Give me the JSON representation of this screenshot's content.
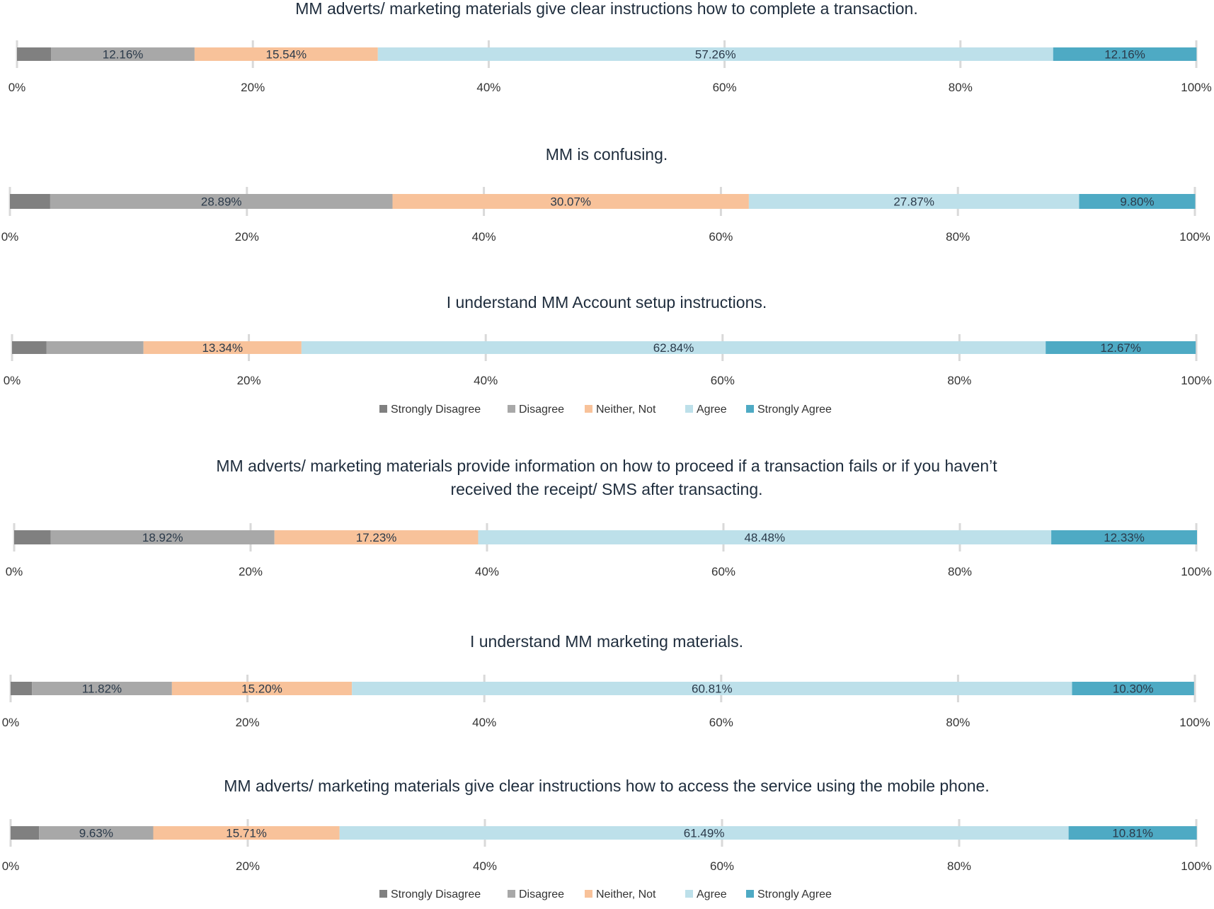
{
  "series_names": [
    "Strongly Disagree",
    "Disagree",
    "Neither, Not",
    "Agree",
    "Strongly Agree"
  ],
  "series_colors": [
    "#808080",
    "#a8a8a8",
    "#f8c29a",
    "#bde0ea",
    "#4eaac4"
  ],
  "x_tick_labels": [
    "0%",
    "20%",
    "40%",
    "60%",
    "80%",
    "100%"
  ],
  "chart_data": [
    {
      "type": "bar",
      "stacked": true,
      "orientation": "horizontal",
      "title": "MM adverts/ marketing materials give clear instructions how to complete a transaction.",
      "xlim": [
        0,
        100
      ],
      "series": [
        {
          "name": "Strongly Disagree",
          "value": 2.9,
          "label": ""
        },
        {
          "name": "Disagree",
          "value": 12.16,
          "label": "12.16%"
        },
        {
          "name": "Neither, Not",
          "value": 15.54,
          "label": "15.54%"
        },
        {
          "name": "Agree",
          "value": 57.26,
          "label": "57.26%"
        },
        {
          "name": "Strongly Agree",
          "value": 12.16,
          "label": "12.16%"
        }
      ]
    },
    {
      "type": "bar",
      "stacked": true,
      "orientation": "horizontal",
      "title": "MM is confusing.",
      "xlim": [
        0,
        100
      ],
      "series": [
        {
          "name": "Strongly Disagree",
          "value": 3.4,
          "label": ""
        },
        {
          "name": "Disagree",
          "value": 28.89,
          "label": "28.89%"
        },
        {
          "name": "Neither, Not",
          "value": 30.07,
          "label": "30.07%"
        },
        {
          "name": "Agree",
          "value": 27.87,
          "label": "27.87%"
        },
        {
          "name": "Strongly Agree",
          "value": 9.8,
          "label": "9.80%"
        }
      ]
    },
    {
      "type": "bar",
      "stacked": true,
      "orientation": "horizontal",
      "title": "I understand MM Account setup instructions.",
      "xlim": [
        0,
        100
      ],
      "series": [
        {
          "name": "Strongly Disagree",
          "value": 2.9,
          "label": ""
        },
        {
          "name": "Disagree",
          "value": 8.2,
          "label": ""
        },
        {
          "name": "Neither, Not",
          "value": 13.34,
          "label": "13.34%"
        },
        {
          "name": "Agree",
          "value": 62.84,
          "label": "62.84%"
        },
        {
          "name": "Strongly Agree",
          "value": 12.67,
          "label": "12.67%"
        }
      ]
    },
    {
      "type": "bar",
      "stacked": true,
      "orientation": "horizontal",
      "title": "MM adverts/ marketing materials provide information on how to proceed if a transaction fails or if you haven’t received the receipt/ SMS after transacting.",
      "title_lines": [
        "MM adverts/ marketing materials provide information on how to proceed if a transaction fails or if you haven’t",
        "received the receipt/ SMS after transacting."
      ],
      "xlim": [
        0,
        100
      ],
      "series": [
        {
          "name": "Strongly Disagree",
          "value": 3.1,
          "label": ""
        },
        {
          "name": "Disagree",
          "value": 18.92,
          "label": "18.92%"
        },
        {
          "name": "Neither, Not",
          "value": 17.23,
          "label": "17.23%"
        },
        {
          "name": "Agree",
          "value": 48.48,
          "label": "48.48%"
        },
        {
          "name": "Strongly Agree",
          "value": 12.33,
          "label": "12.33%"
        }
      ]
    },
    {
      "type": "bar",
      "stacked": true,
      "orientation": "horizontal",
      "title": "I understand MM marketing materials.",
      "xlim": [
        0,
        100
      ],
      "series": [
        {
          "name": "Strongly Disagree",
          "value": 1.8,
          "label": ""
        },
        {
          "name": "Disagree",
          "value": 11.82,
          "label": "11.82%"
        },
        {
          "name": "Neither, Not",
          "value": 15.2,
          "label": "15.20%"
        },
        {
          "name": "Agree",
          "value": 60.81,
          "label": "60.81%"
        },
        {
          "name": "Strongly Agree",
          "value": 10.3,
          "label": "10.30%"
        }
      ]
    },
    {
      "type": "bar",
      "stacked": true,
      "orientation": "horizontal",
      "title": "MM adverts/ marketing materials give clear instructions how to access the service using the mobile phone.",
      "xlim": [
        0,
        100
      ],
      "series": [
        {
          "name": "Strongly Disagree",
          "value": 2.4,
          "label": ""
        },
        {
          "name": "Disagree",
          "value": 9.63,
          "label": "9.63%"
        },
        {
          "name": "Neither, Not",
          "value": 15.71,
          "label": "15.71%"
        },
        {
          "name": "Agree",
          "value": 61.49,
          "label": "61.49%"
        },
        {
          "name": "Strongly Agree",
          "value": 10.81,
          "label": "10.81%"
        }
      ]
    }
  ]
}
